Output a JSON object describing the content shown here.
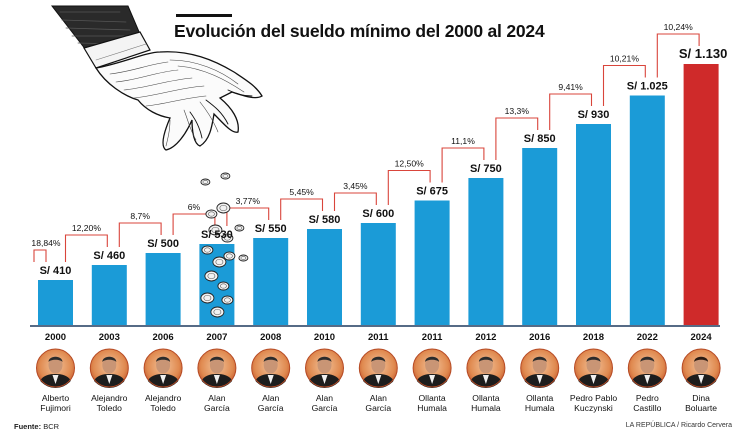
{
  "title": "Evolución del sueldo mínimo del 2000 al 2024",
  "source_label": "Fuente:",
  "source_value": "BCR",
  "credit": "LA REPÚBLICA / Ricardo Cervera",
  "colors": {
    "bar": "#1b9bd7",
    "highlight_bar": "#cf2a2a",
    "connector": "#d9453b",
    "axis": "#1e3a5f"
  },
  "icons": [
    "hand-dropping-coins-illustration",
    "coins-icon",
    "president-portrait-icon"
  ],
  "chart_data": {
    "type": "bar",
    "title": "Evolución del sueldo mínimo del 2000 al 2024",
    "categories": [
      "2000",
      "2003",
      "2006",
      "2007",
      "2008",
      "2010",
      "2011",
      "2011",
      "2012",
      "2016",
      "2018",
      "2022",
      "2024"
    ],
    "values": [
      410,
      460,
      500,
      530,
      550,
      580,
      600,
      675,
      750,
      850,
      930,
      1025,
      1130
    ],
    "value_labels": [
      "S/ 410",
      "S/ 460",
      "S/ 500",
      "S/ 530",
      "S/ 550",
      "S/ 580",
      "S/ 600",
      "S/ 675",
      "S/ 750",
      "S/ 850",
      "S/ 930",
      "S/ 1.025",
      "S/ 1.130"
    ],
    "increase_labels": [
      "18,84%",
      "12,20%",
      "8,7%",
      "6%",
      "3,77%",
      "5,45%",
      "3,45%",
      "12,50%",
      "11,1%",
      "13,3%",
      "9,41%",
      "10,21%",
      "10,24%"
    ],
    "presidents": [
      [
        "Alberto",
        "Fujimori"
      ],
      [
        "Alejandro",
        "Toledo"
      ],
      [
        "Alejandro",
        "Toledo"
      ],
      [
        "Alan",
        "García"
      ],
      [
        "Alan",
        "García"
      ],
      [
        "Alan",
        "García"
      ],
      [
        "Alan",
        "García"
      ],
      [
        "Ollanta",
        "Humala"
      ],
      [
        "Ollanta",
        "Humala"
      ],
      [
        "Ollanta",
        "Humala"
      ],
      [
        "Pedro Pablo",
        "Kuczynski"
      ],
      [
        "Pedro",
        "Castillo"
      ],
      [
        "Dina",
        "Boluarte"
      ]
    ],
    "highlight_index": 12,
    "grid": false,
    "legend": "none"
  }
}
